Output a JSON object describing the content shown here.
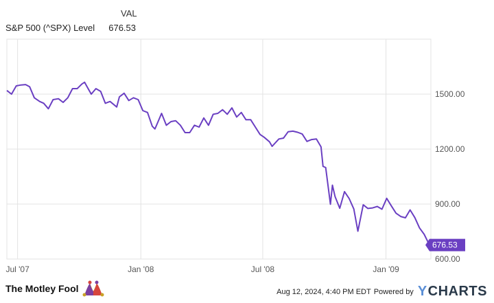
{
  "legend": {
    "header": "VAL",
    "series_name": "S&P 500 (^SPX) Level",
    "series_value": "676.53"
  },
  "colors": {
    "line": "#6a3fc2",
    "grid": "#e3e3e3",
    "axis_text": "#555555"
  },
  "chart_data": {
    "type": "line",
    "title": "",
    "xlabel": "",
    "ylabel": "",
    "x_range": [
      "2007-06-15",
      "2009-03-09"
    ],
    "ylim": [
      600,
      1800
    ],
    "y_ticks": [
      600,
      900,
      1200,
      1500
    ],
    "y_tick_labels": [
      "600.00",
      "900.00",
      "1200.00",
      "1500.00"
    ],
    "x_ticks": [
      "2007-07-01",
      "2008-01-01",
      "2008-07-01",
      "2009-01-01"
    ],
    "x_tick_labels": [
      "Jul '07",
      "Jan '08",
      "Jul '08",
      "Jan '09"
    ],
    "grid": true,
    "end_label": "676.53",
    "series": [
      {
        "name": "S&P 500 (^SPX) Level",
        "x": [
          "2007-06-15",
          "2007-06-22",
          "2007-06-29",
          "2007-07-06",
          "2007-07-13",
          "2007-07-19",
          "2007-07-26",
          "2007-08-03",
          "2007-08-09",
          "2007-08-16",
          "2007-08-23",
          "2007-08-31",
          "2007-09-07",
          "2007-09-14",
          "2007-09-21",
          "2007-09-28",
          "2007-10-05",
          "2007-10-09",
          "2007-10-12",
          "2007-10-19",
          "2007-10-26",
          "2007-11-02",
          "2007-11-09",
          "2007-11-16",
          "2007-11-26",
          "2007-11-30",
          "2007-12-07",
          "2007-12-14",
          "2007-12-21",
          "2007-12-28",
          "2008-01-04",
          "2008-01-11",
          "2008-01-18",
          "2008-01-22",
          "2008-01-25",
          "2008-02-01",
          "2008-02-08",
          "2008-02-15",
          "2008-02-22",
          "2008-02-29",
          "2008-03-07",
          "2008-03-14",
          "2008-03-21",
          "2008-03-28",
          "2008-04-04",
          "2008-04-11",
          "2008-04-18",
          "2008-04-25",
          "2008-05-02",
          "2008-05-09",
          "2008-05-16",
          "2008-05-23",
          "2008-05-30",
          "2008-06-06",
          "2008-06-13",
          "2008-06-20",
          "2008-06-27",
          "2008-07-03",
          "2008-07-11",
          "2008-07-15",
          "2008-07-25",
          "2008-08-01",
          "2008-08-08",
          "2008-08-15",
          "2008-08-22",
          "2008-08-29",
          "2008-09-05",
          "2008-09-12",
          "2008-09-19",
          "2008-09-26",
          "2008-09-29",
          "2008-10-03",
          "2008-10-10",
          "2008-10-13",
          "2008-10-17",
          "2008-10-24",
          "2008-10-31",
          "2008-11-07",
          "2008-11-14",
          "2008-11-20",
          "2008-11-28",
          "2008-12-05",
          "2008-12-12",
          "2008-12-19",
          "2008-12-26",
          "2009-01-02",
          "2009-01-09",
          "2009-01-16",
          "2009-01-23",
          "2009-01-30",
          "2009-02-06",
          "2009-02-13",
          "2009-02-20",
          "2009-02-27",
          "2009-03-06",
          "2009-03-09"
        ],
        "y": [
          1520,
          1500,
          1545,
          1550,
          1552,
          1540,
          1480,
          1460,
          1450,
          1420,
          1470,
          1475,
          1455,
          1480,
          1530,
          1530,
          1555,
          1565,
          1545,
          1500,
          1530,
          1515,
          1450,
          1460,
          1430,
          1485,
          1505,
          1465,
          1480,
          1470,
          1410,
          1400,
          1325,
          1310,
          1335,
          1395,
          1330,
          1350,
          1355,
          1330,
          1290,
          1290,
          1330,
          1320,
          1370,
          1330,
          1390,
          1395,
          1415,
          1390,
          1425,
          1375,
          1400,
          1360,
          1360,
          1320,
          1280,
          1265,
          1240,
          1215,
          1255,
          1260,
          1295,
          1298,
          1292,
          1282,
          1242,
          1252,
          1255,
          1212,
          1106,
          1099,
          899,
          1003,
          940,
          877,
          968,
          930,
          873,
          752,
          896,
          876,
          879,
          887,
          872,
          931,
          890,
          850,
          832,
          825,
          868,
          826,
          770,
          735,
          683,
          676.53
        ]
      }
    ]
  },
  "footer": {
    "brand": "The Motley Fool",
    "timestamp": "Aug 12, 2024, 4:40 PM EDT",
    "powered_by": "Powered by",
    "ycharts_y": "Y",
    "ycharts_rest": "CHARTS",
    "jester_icon": "jester-hat-icon"
  }
}
